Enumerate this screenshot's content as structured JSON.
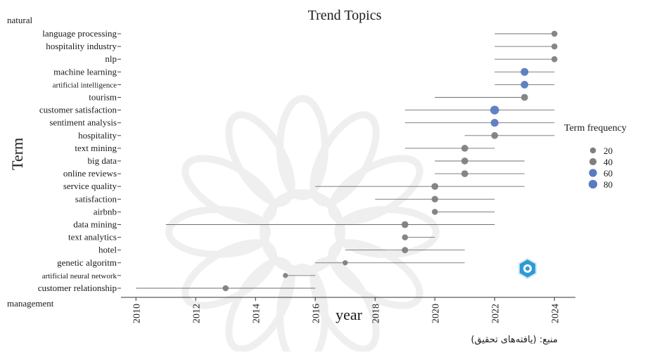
{
  "chart_data": {
    "type": "scatter",
    "title": "Trend Topics",
    "xlabel": "year",
    "ylabel": "Term",
    "xlim": [
      2009.5,
      2024.7
    ],
    "x_ticks": [
      "2010",
      "2012",
      "2014",
      "2016",
      "2018",
      "2020",
      "2022",
      "2024"
    ],
    "legend": {
      "title": "Term frequency",
      "placement": "right",
      "sizes": [
        20,
        40,
        60,
        80
      ],
      "labels": [
        "20",
        "40",
        "60",
        "80"
      ]
    },
    "top_label": "natural",
    "terms": [
      {
        "label": "language processing",
        "start": 2022,
        "end": 2024,
        "median": 2024,
        "freq": 20
      },
      {
        "label": "hospitality industry",
        "start": 2022,
        "end": 2024,
        "median": 2024,
        "freq": 20
      },
      {
        "label": "nlp",
        "start": 2022,
        "end": 2024,
        "median": 2024,
        "freq": 20
      },
      {
        "label": "machine learning",
        "start": 2022,
        "end": 2024,
        "median": 2023,
        "freq": 55
      },
      {
        "label": "artificial intelligence",
        "start": 2022,
        "end": 2024,
        "median": 2023,
        "freq": 50
      },
      {
        "label": "tourism",
        "start": 2020,
        "end": 2023,
        "median": 2023,
        "freq": 35
      },
      {
        "label": "customer satisfaction",
        "start": 2019,
        "end": 2024,
        "median": 2022,
        "freq": 85
      },
      {
        "label": "sentiment analysis",
        "start": 2019,
        "end": 2024,
        "median": 2022,
        "freq": 55
      },
      {
        "label": "hospitality",
        "start": 2021,
        "end": 2024,
        "median": 2022,
        "freq": 35
      },
      {
        "label": "text mining",
        "start": 2019,
        "end": 2022,
        "median": 2021,
        "freq": 35
      },
      {
        "label": "big data",
        "start": 2020,
        "end": 2023,
        "median": 2021,
        "freq": 35
      },
      {
        "label": "online reviews",
        "start": 2020,
        "end": 2023,
        "median": 2021,
        "freq": 35
      },
      {
        "label": "service quality",
        "start": 2016,
        "end": 2023,
        "median": 2020,
        "freq": 35
      },
      {
        "label": "satisfaction",
        "start": 2018,
        "end": 2022,
        "median": 2020,
        "freq": 30
      },
      {
        "label": "airbnb",
        "start": 2020,
        "end": 2022,
        "median": 2020,
        "freq": 20
      },
      {
        "label": "data mining",
        "start": 2011,
        "end": 2022,
        "median": 2019,
        "freq": 35
      },
      {
        "label": "text analytics",
        "start": 2019,
        "end": 2020,
        "median": 2019,
        "freq": 20
      },
      {
        "label": "hotel",
        "start": 2017,
        "end": 2021,
        "median": 2019,
        "freq": 25
      },
      {
        "label": "genetic algoritm",
        "start": 2016,
        "end": 2021,
        "median": 2017,
        "freq": 10
      },
      {
        "label": "artificial neural network",
        "start": 2015,
        "end": 2016,
        "median": 2015,
        "freq": 8
      },
      {
        "label": "customer relationship",
        "start": 2010,
        "end": 2016,
        "median": 2013,
        "freq": 20
      }
    ],
    "bottom_label": "management",
    "grid": false
  },
  "colors": {
    "grey": "#7f7f7f",
    "blue": "#5b7bbf",
    "line": "#6f6f6f",
    "watermark": "#efefef",
    "logo": "#2f9ad6"
  },
  "logo_icon": "publisher-logo-icon",
  "caption": "منبع: (یافته‌های تحقیق)"
}
